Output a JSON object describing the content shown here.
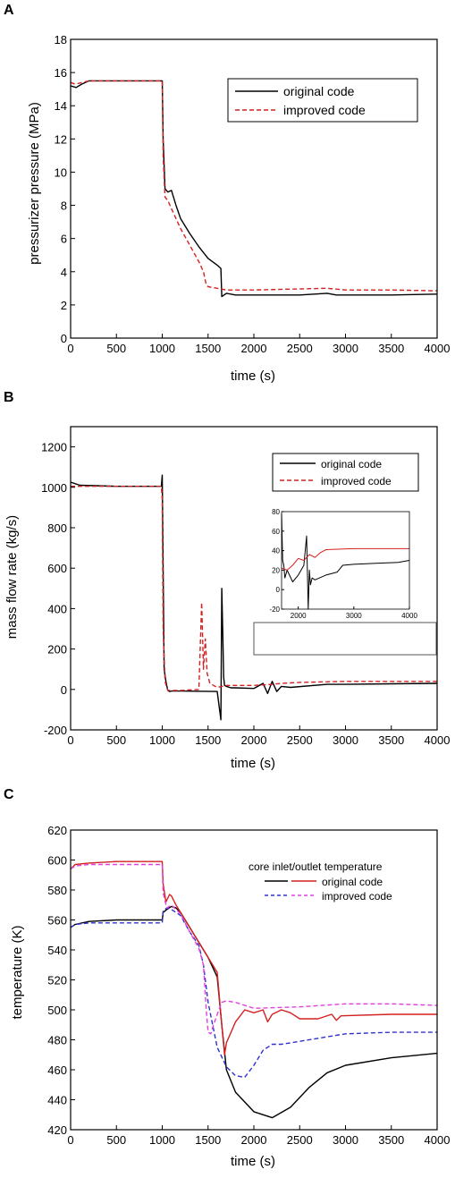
{
  "chart_data": [
    {
      "panel": "A",
      "type": "line",
      "xlabel": "time (s)",
      "ylabel": "pressurizer pressure (MPa)",
      "xlim": [
        0,
        4000
      ],
      "ylim": [
        0,
        18
      ],
      "xticks": [
        0,
        500,
        1000,
        1500,
        2000,
        2500,
        3000,
        3500,
        4000
      ],
      "yticks": [
        0,
        2,
        4,
        6,
        8,
        10,
        12,
        14,
        16,
        18
      ],
      "legend": "top-right",
      "series": [
        {
          "name": "original code",
          "color": "#000000",
          "dash": "solid",
          "x": [
            0,
            60,
            120,
            200,
            1000,
            1010,
            1030,
            1060,
            1100,
            1150,
            1200,
            1300,
            1400,
            1500,
            1600,
            1640,
            1650,
            1700,
            1800,
            2000,
            2500,
            2800,
            2900,
            3500,
            4000
          ],
          "y": [
            15.2,
            15.1,
            15.3,
            15.5,
            15.5,
            12.0,
            9.0,
            8.8,
            8.9,
            8.0,
            7.2,
            6.3,
            5.5,
            4.8,
            4.4,
            4.2,
            2.5,
            2.7,
            2.6,
            2.6,
            2.6,
            2.7,
            2.6,
            2.6,
            2.65
          ]
        },
        {
          "name": "improved code",
          "color": "#d42020",
          "dash": "dashed",
          "x": [
            0,
            50,
            200,
            1000,
            1010,
            1030,
            1060,
            1100,
            1200,
            1300,
            1400,
            1450,
            1480,
            1500,
            1700,
            2000,
            2800,
            3000,
            3500,
            4000
          ],
          "y": [
            15.4,
            15.3,
            15.5,
            15.5,
            11.0,
            8.5,
            8.3,
            7.8,
            6.6,
            5.6,
            4.6,
            4.0,
            3.2,
            3.1,
            2.9,
            2.9,
            3.0,
            2.9,
            2.9,
            2.85
          ]
        }
      ]
    },
    {
      "panel": "B",
      "type": "line",
      "xlabel": "time (s)",
      "ylabel": "mass flow rate (kg/s)",
      "xlim": [
        0,
        4000
      ],
      "ylim": [
        -200,
        1300
      ],
      "xticks": [
        0,
        500,
        1000,
        1500,
        2000,
        2500,
        3000,
        3500,
        4000
      ],
      "yticks": [
        -200,
        0,
        200,
        400,
        600,
        800,
        1000,
        1200
      ],
      "legend": "top-right",
      "series": [
        {
          "name": "original code",
          "color": "#000000",
          "dash": "solid",
          "x": [
            0,
            100,
            500,
            990,
            1000,
            1010,
            1020,
            1040,
            1060,
            1080,
            1100,
            1200,
            1600,
            1640,
            1650,
            1660,
            1670,
            1680,
            1700,
            1750,
            1800,
            2000,
            2100,
            2150,
            2200,
            2250,
            2300,
            2400,
            2800,
            3000,
            3500,
            4000
          ],
          "y": [
            1025,
            1010,
            1005,
            1005,
            1060,
            600,
            100,
            40,
            -5,
            -10,
            -8,
            -8,
            -10,
            -150,
            500,
            280,
            60,
            20,
            15,
            8,
            8,
            5,
            30,
            -20,
            40,
            -10,
            15,
            10,
            25,
            25,
            28,
            30
          ]
        },
        {
          "name": "improved code",
          "color": "#d42020",
          "dash": "dashed",
          "x": [
            0,
            500,
            990,
            1000,
            1010,
            1030,
            1060,
            1100,
            1200,
            1400,
            1430,
            1450,
            1470,
            1490,
            1520,
            1560,
            1600,
            1700,
            2000,
            2200,
            2300,
            2500,
            3000,
            3500,
            4000
          ],
          "y": [
            1005,
            1005,
            1005,
            940,
            300,
            40,
            -5,
            -5,
            -5,
            0,
            430,
            100,
            250,
            80,
            30,
            20,
            10,
            20,
            20,
            25,
            30,
            35,
            40,
            40,
            40
          ]
        }
      ],
      "inset": {
        "xlim": [
          1700,
          4000
        ],
        "ylim": [
          -20,
          80
        ],
        "xticks": [
          2000,
          3000,
          4000
        ],
        "yticks": [
          -20,
          0,
          20,
          40,
          60,
          80
        ],
        "series": [
          {
            "name": "original code",
            "color": "#000000",
            "x": [
              1700,
              1720,
              1740,
              1760,
              1800,
              1900,
              2000,
              2100,
              2150,
              2180,
              2200,
              2220,
              2250,
              2300,
              2500,
              2700,
              2800,
              3000,
              3400,
              3800,
              4000
            ],
            "y": [
              78,
              30,
              25,
              12,
              20,
              8,
              15,
              25,
              55,
              -20,
              20,
              5,
              12,
              10,
              15,
              18,
              25,
              26,
              27,
              28,
              30
            ]
          },
          {
            "name": "improved code",
            "color": "#d42020",
            "x": [
              1700,
              1800,
              1900,
              2000,
              2100,
              2200,
              2300,
              2400,
              2500,
              3000,
              3500,
              4000
            ],
            "y": [
              22,
              20,
              25,
              32,
              30,
              36,
              33,
              38,
              41,
              42,
              42,
              42
            ]
          }
        ]
      }
    },
    {
      "panel": "C",
      "type": "line",
      "xlabel": "time (s)",
      "ylabel": "temperature (K)",
      "xlim": [
        0,
        4000
      ],
      "ylim": [
        420,
        620
      ],
      "xticks": [
        0,
        500,
        1000,
        1500,
        2000,
        2500,
        3000,
        3500,
        4000
      ],
      "yticks": [
        420,
        440,
        460,
        480,
        500,
        520,
        540,
        560,
        580,
        600,
        620
      ],
      "legend_title": "core inlet/outlet temperature",
      "legend": "top-right",
      "series": [
        {
          "name": "original code",
          "role": "inlet",
          "color": "#000000",
          "dash": "solid",
          "x": [
            0,
            50,
            200,
            500,
            1000,
            1010,
            1050,
            1100,
            1150,
            1200,
            1300,
            1400,
            1500,
            1600,
            1650,
            1700,
            1800,
            2000,
            2200,
            2400,
            2600,
            2800,
            3000,
            3500,
            4000
          ],
          "y": [
            555,
            557,
            559,
            560,
            560,
            565,
            567,
            569,
            568,
            565,
            555,
            545,
            535,
            522,
            490,
            460,
            445,
            432,
            428,
            435,
            448,
            458,
            463,
            468,
            471
          ]
        },
        {
          "name": "original code",
          "role": "outlet",
          "color": "#d42020",
          "dash": "solid",
          "x": [
            0,
            50,
            200,
            500,
            1000,
            1010,
            1040,
            1080,
            1100,
            1150,
            1200,
            1300,
            1400,
            1500,
            1600,
            1650,
            1680,
            1700,
            1800,
            1900,
            2000,
            2100,
            2150,
            2200,
            2300,
            2400,
            2500,
            2700,
            2850,
            2900,
            2950,
            3500,
            4000
          ],
          "y": [
            594,
            597,
            598,
            599,
            599,
            584,
            572,
            577,
            576,
            570,
            565,
            555,
            545,
            535,
            525,
            490,
            470,
            478,
            492,
            500,
            498,
            500,
            492,
            497,
            500,
            498,
            494,
            494,
            497,
            493,
            496,
            497,
            497
          ]
        },
        {
          "name": "improved code",
          "role": "inlet",
          "color": "#3030d0",
          "dash": "dashed",
          "x": [
            0,
            50,
            200,
            500,
            1000,
            1010,
            1050,
            1100,
            1200,
            1300,
            1400,
            1450,
            1500,
            1550,
            1600,
            1700,
            1800,
            1900,
            2000,
            2100,
            2200,
            2300,
            2500,
            3000,
            3500,
            4000
          ],
          "y": [
            555,
            557,
            558,
            558,
            558,
            566,
            568,
            567,
            563,
            552,
            543,
            530,
            505,
            490,
            475,
            462,
            456,
            455,
            463,
            473,
            477,
            477,
            479,
            484,
            485,
            485
          ]
        },
        {
          "name": "improved code",
          "role": "outlet",
          "color": "#e040e0",
          "dash": "dashed",
          "x": [
            0,
            50,
            200,
            500,
            1000,
            1010,
            1050,
            1100,
            1200,
            1300,
            1400,
            1450,
            1480,
            1500,
            1530,
            1560,
            1600,
            1650,
            1700,
            1800,
            2000,
            2500,
            3000,
            3500,
            4000
          ],
          "y": [
            594,
            596,
            597,
            597,
            597,
            578,
            568,
            570,
            564,
            552,
            541,
            530,
            500,
            485,
            484,
            490,
            497,
            505,
            506,
            505,
            501,
            502,
            504,
            504,
            503
          ]
        }
      ]
    }
  ]
}
